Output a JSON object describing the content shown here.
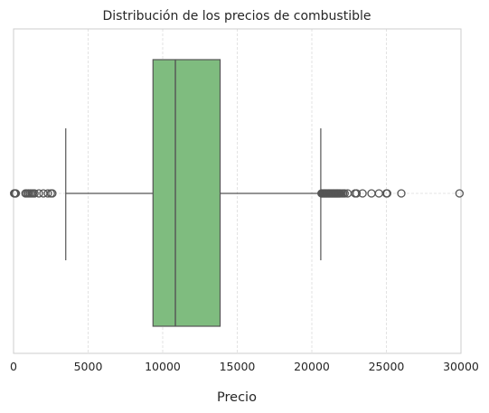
{
  "chart_data": {
    "type": "boxplot",
    "orientation": "horizontal",
    "title": "Distribución de los precios de combustible",
    "xlabel": "Precio",
    "ylabel": "",
    "xlim": [
      0,
      30000
    ],
    "xticks": [
      0,
      5000,
      10000,
      15000,
      20000,
      25000,
      30000
    ],
    "xtick_labels": [
      "0",
      "5000",
      "10000",
      "15000",
      "20000",
      "25000",
      "30000"
    ],
    "grid": true,
    "box": {
      "whisker_low": 3500,
      "q1": 9350,
      "median": 10850,
      "q3": 13850,
      "whisker_high": 20600,
      "color": "#7fbc7f",
      "edge_color": "#555555"
    },
    "outliers_low": [
      40,
      80,
      120,
      150,
      800,
      900,
      1000,
      1100,
      1200,
      1300,
      1400,
      1700,
      2000,
      2300,
      2500,
      2600
    ],
    "outliers_high": [
      20650,
      20700,
      20750,
      20800,
      20850,
      20900,
      20950,
      21000,
      21050,
      21100,
      21150,
      21200,
      21250,
      21300,
      21350,
      21400,
      21450,
      21500,
      21550,
      21600,
      21650,
      21700,
      21750,
      21800,
      21850,
      21900,
      22000,
      22100,
      22200,
      22400,
      22900,
      23000,
      23400,
      24000,
      24500,
      25000,
      25050,
      26000,
      29900
    ]
  }
}
